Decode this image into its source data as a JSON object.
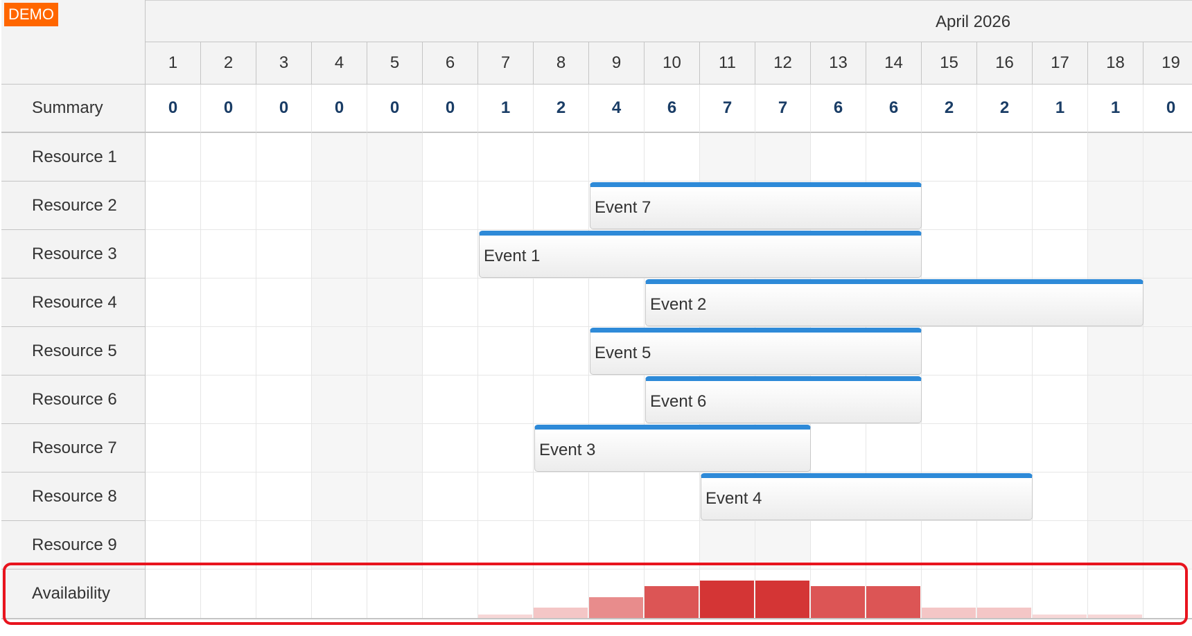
{
  "demo_badge": "DEMO",
  "month_label": "April 2026",
  "days": [
    "1",
    "2",
    "3",
    "4",
    "5",
    "6",
    "7",
    "8",
    "9",
    "10",
    "11",
    "12",
    "13",
    "14",
    "15",
    "16",
    "17",
    "18",
    "19"
  ],
  "summary_label": "Summary",
  "summary_values": [
    "0",
    "0",
    "0",
    "0",
    "0",
    "0",
    "1",
    "2",
    "4",
    "6",
    "7",
    "7",
    "6",
    "6",
    "2",
    "2",
    "1",
    "1",
    "0"
  ],
  "resources": [
    "Resource 1",
    "Resource 2",
    "Resource 3",
    "Resource 4",
    "Resource 5",
    "Resource 6",
    "Resource 7",
    "Resource 8",
    "Resource 9"
  ],
  "availability_label": "Availability",
  "availability_levels": [
    0,
    0,
    0,
    0,
    0,
    0,
    1,
    2,
    4,
    6,
    7,
    7,
    6,
    6,
    2,
    2,
    1,
    1,
    0
  ],
  "availability_max": 7,
  "colors": {
    "event_bar": "#2e8ad8",
    "highlight_frame": "#e8141e",
    "demo_badge": "#ff6600",
    "availability_level_1": "#f7d7d7",
    "availability_level_2": "#f4c6c6",
    "availability_level_4": "#e88c8c",
    "availability_level_6": "#dc5555",
    "availability_level_7": "#d43535"
  },
  "events": [
    {
      "name": "Event 7",
      "resource": "Resource 2",
      "start_day": 9,
      "end_day": 14
    },
    {
      "name": "Event 1",
      "resource": "Resource 3",
      "start_day": 7,
      "end_day": 14
    },
    {
      "name": "Event 2",
      "resource": "Resource 4",
      "start_day": 10,
      "end_day": 18
    },
    {
      "name": "Event 5",
      "resource": "Resource 5",
      "start_day": 9,
      "end_day": 14
    },
    {
      "name": "Event 6",
      "resource": "Resource 6",
      "start_day": 10,
      "end_day": 14
    },
    {
      "name": "Event 3",
      "resource": "Resource 7",
      "start_day": 8,
      "end_day": 12
    },
    {
      "name": "Event 4",
      "resource": "Resource 8",
      "start_day": 11,
      "end_day": 16
    }
  ]
}
